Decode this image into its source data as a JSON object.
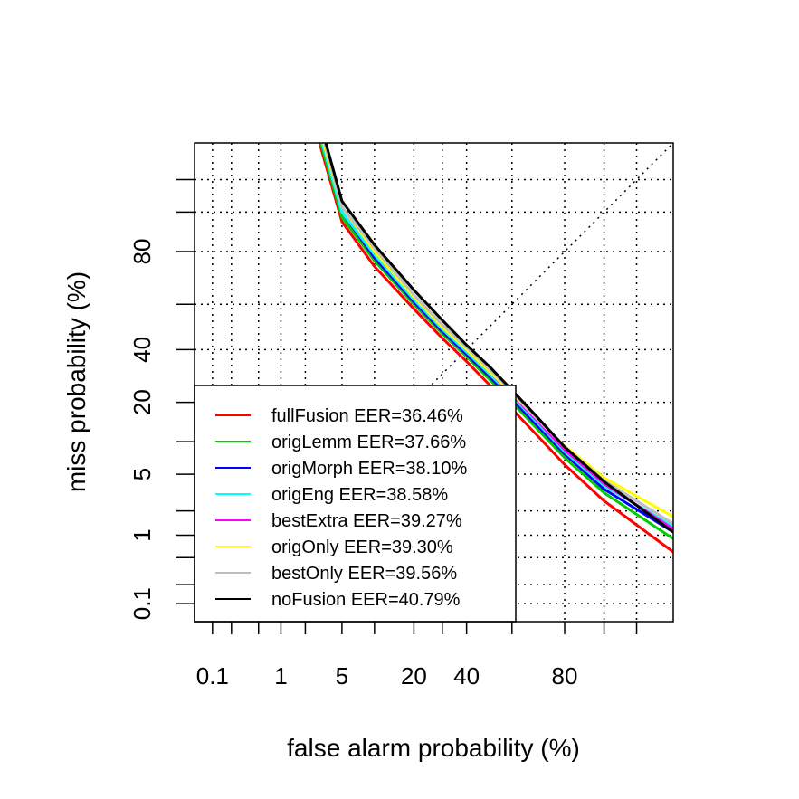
{
  "chart_data": {
    "type": "line",
    "title": "",
    "xlabel": "false alarm probability (%)",
    "ylabel": "miss probability (%)",
    "scale": "normal-deviate (probit)",
    "xlim": [
      0.05,
      98
    ],
    "ylim": [
      0.05,
      98
    ],
    "x_ticks": [
      0.1,
      0.2,
      0.5,
      1,
      2,
      5,
      10,
      20,
      30,
      40,
      60,
      80,
      90,
      95
    ],
    "y_ticks": [
      0.1,
      0.2,
      0.5,
      1,
      2,
      5,
      10,
      20,
      40,
      60,
      80,
      90,
      95
    ],
    "x_tick_labels": [
      {
        "value": 0.1,
        "label": "0.1"
      },
      {
        "value": 1,
        "label": "1"
      },
      {
        "value": 5,
        "label": "5"
      },
      {
        "value": 20,
        "label": "20"
      },
      {
        "value": 40,
        "label": "40"
      },
      {
        "value": 80,
        "label": "80"
      }
    ],
    "y_tick_labels": [
      {
        "value": 0.1,
        "label": "0.1"
      },
      {
        "value": 1,
        "label": "1"
      },
      {
        "value": 5,
        "label": "5"
      },
      {
        "value": 20,
        "label": "20"
      },
      {
        "value": 40,
        "label": "40"
      },
      {
        "value": 80,
        "label": "80"
      }
    ],
    "grid": true,
    "reference_line": "diagonal (miss = false alarm)",
    "legend_position": "bottom-left",
    "series": [
      {
        "name": "fullFusion EER=36.46%",
        "color": "#ff0000",
        "x": [
          2.9,
          5,
          10,
          20,
          30,
          40,
          50,
          60,
          70,
          80,
          90,
          98
        ],
        "y": [
          98,
          88,
          75,
          58,
          45,
          35,
          26,
          18,
          11.5,
          6.2,
          2.6,
          0.6
        ]
      },
      {
        "name": "origLemm EER=37.66%",
        "color": "#00cd00",
        "x": [
          3.0,
          5,
          10,
          20,
          30,
          40,
          50,
          60,
          70,
          80,
          90,
          98
        ],
        "y": [
          98,
          89,
          77,
          60,
          47,
          37,
          28,
          20,
          13,
          7.2,
          3.2,
          0.9
        ]
      },
      {
        "name": "origMorph EER=38.10%",
        "color": "#0000ff",
        "x": [
          3.1,
          5,
          10,
          20,
          30,
          40,
          50,
          60,
          70,
          80,
          90,
          98
        ],
        "y": [
          98,
          90,
          78,
          61,
          48,
          38,
          29,
          21,
          13.8,
          7.8,
          3.5,
          1.1
        ]
      },
      {
        "name": "origEng EER=38.58%",
        "color": "#00ffff",
        "x": [
          3.1,
          5,
          10,
          20,
          30,
          40,
          50,
          60,
          70,
          80,
          90,
          98
        ],
        "y": [
          98,
          90,
          79,
          62,
          49,
          39,
          30,
          22,
          14.5,
          8.2,
          3.8,
          1.3
        ]
      },
      {
        "name": "bestExtra EER=39.27%",
        "color": "#ff00ff",
        "x": [
          3.2,
          5,
          10,
          20,
          30,
          40,
          50,
          60,
          70,
          80,
          90,
          98
        ],
        "y": [
          98,
          91,
          80,
          63,
          50,
          40,
          31,
          22.5,
          15,
          8.5,
          4.0,
          1.2
        ]
      },
      {
        "name": "origOnly EER=39.30%",
        "color": "#ffff00",
        "x": [
          3.2,
          5,
          10,
          20,
          30,
          40,
          50,
          60,
          70,
          80,
          90,
          98
        ],
        "y": [
          98,
          91,
          80,
          63,
          50,
          40,
          31,
          23,
          15.5,
          9.2,
          4.6,
          1.7
        ]
      },
      {
        "name": "bestOnly EER=39.56%",
        "color": "#bebebe",
        "x": [
          3.3,
          5,
          10,
          20,
          30,
          40,
          50,
          60,
          70,
          80,
          90,
          98
        ],
        "y": [
          98,
          91,
          81,
          64,
          51,
          41,
          32,
          23.5,
          15.5,
          9.0,
          4.3,
          1.4
        ]
      },
      {
        "name": "noFusion EER=40.79%",
        "color": "#000000",
        "x": [
          3.4,
          5,
          10,
          20,
          30,
          40,
          50,
          60,
          70,
          80,
          90,
          98
        ],
        "y": [
          98,
          92,
          82,
          66,
          53,
          42,
          33,
          24,
          16,
          9.0,
          4.2,
          1.1
        ]
      }
    ]
  }
}
